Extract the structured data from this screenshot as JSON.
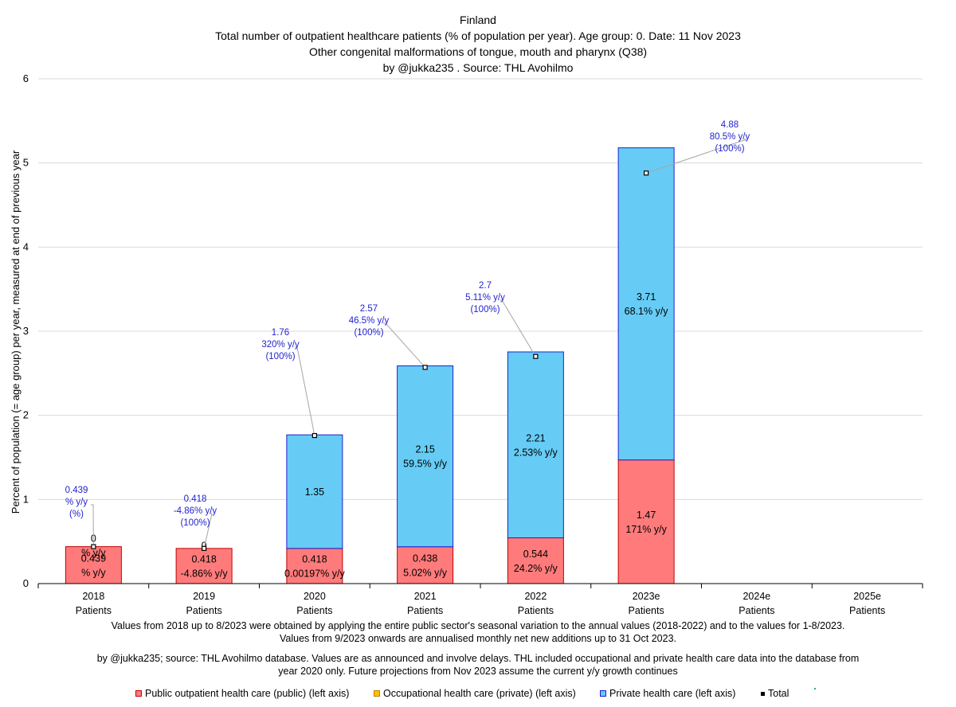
{
  "chart_data": {
    "type": "bar",
    "stacked": true,
    "title_lines": [
      "Finland",
      "Total number of outpatient healthcare patients (% of population per year). Age group: 0. Date: 11 Nov 2023",
      "Other congenital malformations of tongue, mouth and pharynx (Q38)",
      "by @jukka235 . Source: THL Avohilmo"
    ],
    "ylabel": "Percent of population (= age group) per year, measured at end of previous year",
    "ylim": [
      0,
      6
    ],
    "yticks": [
      "0",
      "1",
      "2",
      "3",
      "4",
      "5",
      "6"
    ],
    "grid": true,
    "categories": [
      {
        "year": "2018",
        "sub": "Patients"
      },
      {
        "year": "2019",
        "sub": "Patients"
      },
      {
        "year": "2020",
        "sub": "Patients"
      },
      {
        "year": "2021",
        "sub": "Patients"
      },
      {
        "year": "2022",
        "sub": "Patients"
      },
      {
        "year": "2023e",
        "sub": "Patients"
      },
      {
        "year": "2024e",
        "sub": "Patients"
      },
      {
        "year": "2025e",
        "sub": "Patients"
      }
    ],
    "series": [
      {
        "name": "Public outpatient health care (public) (left axis)",
        "color": "#ff7b7b",
        "border": "#c00000",
        "values": [
          0.439,
          0.418,
          0.418,
          0.438,
          0.544,
          1.47,
          null,
          null
        ],
        "labels": [
          [
            "0.439",
            "% y/y"
          ],
          [
            "0.418",
            "-4.86% y/y"
          ],
          [
            "0.418",
            "0.00197% y/y"
          ],
          [
            "0.438",
            "5.02% y/y"
          ],
          [
            "0.544",
            "24.2% y/y"
          ],
          [
            "1.47",
            "171% y/y"
          ],
          null,
          null
        ]
      },
      {
        "name": "Occupational health care (private) (left axis)",
        "color": "#ffc000",
        "border": "#c08000",
        "values": [
          0,
          0,
          0,
          0,
          0,
          0,
          null,
          null
        ],
        "labels": [
          [
            "0",
            "% y/y"
          ],
          [
            "0"
          ],
          null,
          null,
          null,
          null,
          null,
          null
        ]
      },
      {
        "name": "Private health care (left axis)",
        "color": "#66ccf5",
        "border": "#1f1fd0",
        "values": [
          0,
          0,
          1.35,
          2.15,
          2.21,
          3.71,
          null,
          null
        ],
        "labels": [
          null,
          null,
          [
            "1.35"
          ],
          [
            "2.15",
            "59.5% y/y"
          ],
          [
            "2.21",
            "2.53% y/y"
          ],
          [
            "3.71",
            "68.1% y/y"
          ],
          null,
          null
        ]
      }
    ],
    "total": {
      "name": "Total",
      "values": [
        0.439,
        0.418,
        1.76,
        2.57,
        2.7,
        4.88,
        null,
        null
      ],
      "labels": [
        [
          "0.439",
          "% y/y",
          "(%)"
        ],
        [
          "0.418",
          "-4.86% y/y",
          "(100%)"
        ],
        [
          "1.76",
          "320% y/y",
          "(100%)"
        ],
        [
          "2.57",
          "46.5% y/y",
          "(100%)"
        ],
        [
          "2.7",
          "5.11% y/y",
          "(100%)"
        ],
        [
          "4.88",
          "80.5% y/y",
          "(100%)"
        ],
        null,
        null
      ]
    },
    "legend": [
      {
        "label": "Public outpatient health care (public) (left axis)",
        "color": "#ff7b7b",
        "border": "#c00000"
      },
      {
        "label": "Occupational health care (private) (left axis)",
        "color": "#ffc000",
        "border": "#c08000"
      },
      {
        "label": "Private health care (left axis)",
        "color": "#66ccf5",
        "border": "#1f1fd0"
      },
      {
        "label": "Total",
        "color": "#000000",
        "border": "#000000"
      },
      {
        "label": "",
        "color": "#18b0a0",
        "border": "#18b0a0"
      }
    ]
  },
  "notes": {
    "line1": "Values from 2018 up to 8/2023 were obtained by applying the entire public sector's seasonal variation to the annual values (2018-2022) and to the values for 1-8/2023.",
    "line2": "Values from 9/2023 onwards are annualised monthly net new additions up to 31 Oct 2023.",
    "line3": "by @jukka235; source: THL Avohilmo database. Values are as announced and involve delays. THL included occupational and private health care data into the database from",
    "line4": "year 2020 only. Future projections from Nov 2023 assume the current y/y growth continues"
  }
}
